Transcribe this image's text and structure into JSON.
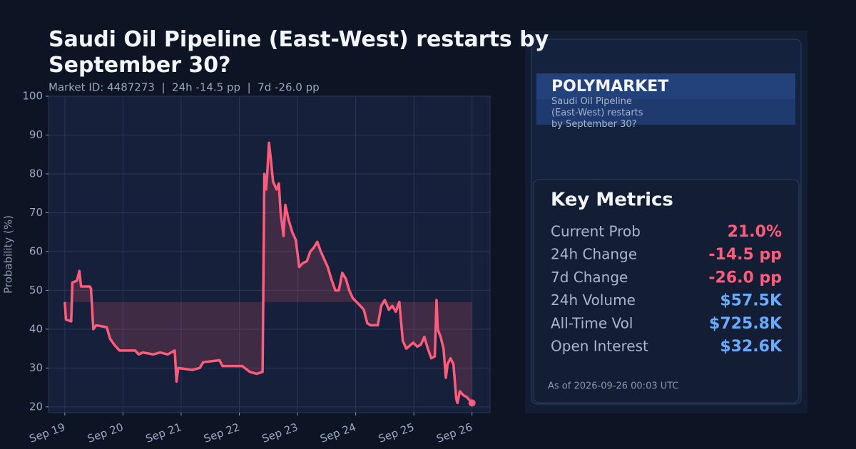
{
  "chart_data": {
    "type": "line",
    "title": "Saudi Oil Pipeline (East-West) restarts by September 30?",
    "subtitle": "Market ID: 4487273  |  24h -14.5 pp  |  7d -26.0 pp",
    "y_label": "Probability (%)",
    "x": [
      0,
      0.02,
      0.11,
      0.13,
      0.21,
      0.25,
      0.28,
      0.43,
      0.45,
      0.49,
      0.54,
      0.72,
      0.78,
      0.85,
      0.94,
      1.21,
      1.27,
      1.34,
      1.52,
      1.64,
      1.77,
      1.89,
      1.92,
      1.95,
      2.19,
      2.32,
      2.38,
      2.66,
      2.71,
      3.05,
      3.18,
      3.3,
      3.4,
      3.43,
      3.46,
      3.48,
      3.51,
      3.54,
      3.58,
      3.64,
      3.68,
      3.71,
      3.76,
      3.79,
      3.85,
      3.91,
      3.97,
      4.03,
      4.09,
      4.16,
      4.22,
      4.28,
      4.34,
      4.4,
      4.46,
      4.52,
      4.58,
      4.65,
      4.71,
      4.77,
      4.83,
      4.89,
      4.95,
      5.08,
      5.14,
      5.2,
      5.26,
      5.38,
      5.44,
      5.5,
      5.57,
      5.63,
      5.69,
      5.75,
      5.81,
      5.87,
      5.99,
      6.06,
      6.12,
      6.18,
      6.24,
      6.3,
      6.36,
      6.39,
      6.41,
      6.46,
      6.51,
      6.55,
      6.58,
      6.63,
      6.68,
      6.73,
      6.75,
      6.79,
      6.85,
      6.91,
      7.0
    ],
    "series": [
      {
        "color": "#ff5c7c",
        "values": [
          47,
          42.5,
          42,
          52,
          52.5,
          55,
          51,
          51,
          50.5,
          40,
          41,
          40.5,
          37.5,
          36,
          34.5,
          34.5,
          33.5,
          34,
          33.5,
          34,
          33.5,
          34.5,
          26.5,
          30,
          29.5,
          30,
          31.5,
          32,
          30.5,
          30.5,
          29,
          28.5,
          29,
          80,
          76,
          80,
          88,
          84,
          78,
          76,
          77.5,
          70,
          64,
          72,
          68,
          65,
          63,
          56,
          57,
          57.5,
          60,
          61,
          62.5,
          60,
          58,
          56,
          53,
          50,
          50,
          54.5,
          53,
          50,
          48,
          46,
          45,
          41.5,
          41,
          41,
          46,
          47.5,
          45,
          46,
          44.5,
          47,
          37,
          35,
          36.5,
          35.5,
          36,
          38,
          35,
          32.5,
          33,
          47.5,
          40,
          38,
          35,
          27.5,
          31,
          32.5,
          31,
          22,
          21,
          24,
          23,
          22.5,
          21
        ]
      }
    ],
    "xlim": [
      -0.28,
      7.31
    ],
    "xticks": [
      {
        "value": 0,
        "label": "Sep 19"
      },
      {
        "value": 1,
        "label": "Sep 20"
      },
      {
        "value": 2,
        "label": "Sep 21"
      },
      {
        "value": 3,
        "label": "Sep 22"
      },
      {
        "value": 4,
        "label": "Sep 23"
      },
      {
        "value": 5,
        "label": "Sep 24"
      },
      {
        "value": 6,
        "label": "Sep 25"
      },
      {
        "value": 7,
        "label": "Sep 26"
      }
    ],
    "ylim": [
      18.5,
      100
    ],
    "yticks": [
      20,
      30,
      40,
      50,
      60,
      70,
      80,
      90,
      100
    ],
    "grid": true
  },
  "panel": {
    "brand": "POLYMARKET",
    "question": "Saudi Oil Pipeline (East-West) restarts by September 30?",
    "metrics_title": "Key Metrics",
    "metrics": [
      {
        "label": "Current Prob",
        "value": "21.0%",
        "color": "#ff5c7c"
      },
      {
        "label": "24h Change",
        "value": "-14.5 pp",
        "color": "#ff5c7c"
      },
      {
        "label": "7d Change",
        "value": "-26.0 pp",
        "color": "#ff5c7c"
      },
      {
        "label": "24h Volume",
        "value": "$57.5K",
        "color": "#6aaaff"
      },
      {
        "label": "All-Time Vol",
        "value": "$725.8K",
        "color": "#6aaaff"
      },
      {
        "label": "Open Interest",
        "value": "$32.6K",
        "color": "#6aaaff"
      }
    ],
    "footnote": "As of 2026-09-26 00:03 UTC"
  }
}
